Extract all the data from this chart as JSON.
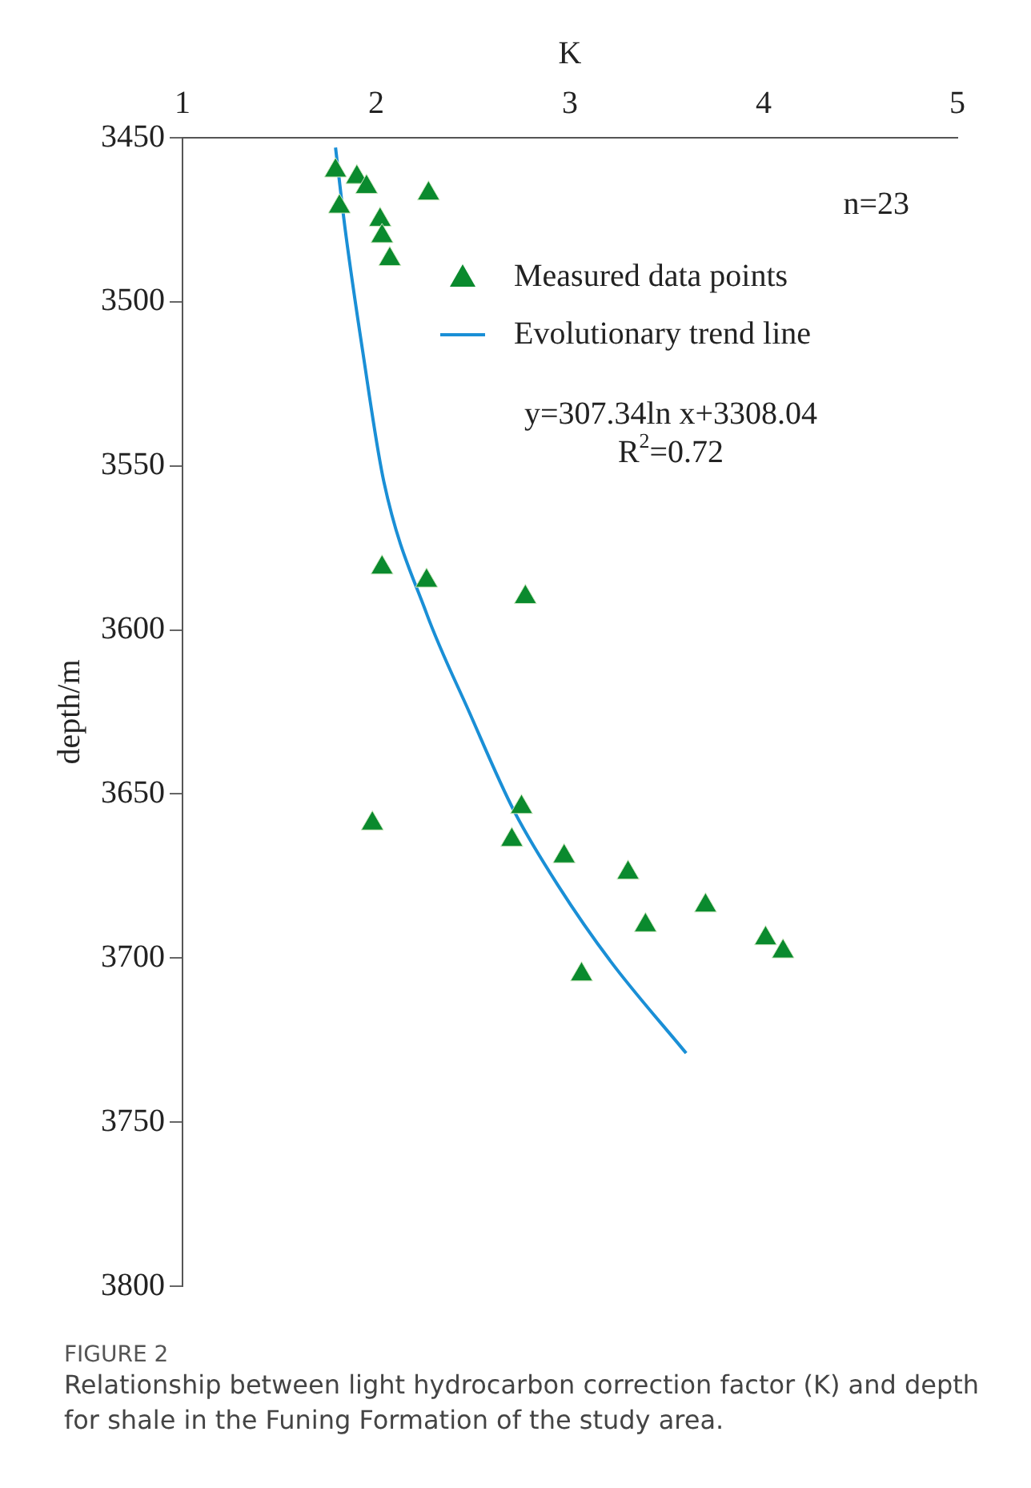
{
  "chart_data": {
    "type": "scatter",
    "xlabel": "K",
    "ylabel": "depth/m",
    "xlim": [
      1,
      5
    ],
    "xticks": [
      1,
      2,
      3,
      4,
      5
    ],
    "ylim": [
      3800,
      3450
    ],
    "yticks": [
      3450,
      3500,
      3550,
      3600,
      3650,
      3700,
      3750,
      3800
    ],
    "grid": false,
    "legend": "top right",
    "marker": "triangle",
    "series": [
      {
        "name": "Measured data points",
        "type": "scatter",
        "color": "#0a8a2e",
        "x": [
          1.79,
          1.9,
          1.95,
          1.81,
          2.27,
          2.02,
          2.03,
          2.07,
          2.03,
          2.26,
          2.77,
          2.75,
          1.98,
          2.7,
          2.97,
          3.3,
          3.7,
          3.39,
          4.01,
          4.1,
          3.06
        ],
        "values": [
          3460,
          3462,
          3465,
          3471,
          3467,
          3475,
          3480,
          3487,
          3581,
          3585,
          3590,
          3654,
          3659,
          3664,
          3669,
          3674,
          3684,
          3690,
          3694,
          3698,
          3705
        ]
      },
      {
        "name": "Evolutionary trend line",
        "type": "line",
        "color": "#1a8fd6",
        "marker": "none",
        "x": [
          1.79,
          1.84,
          1.93,
          2.04,
          2.26,
          2.48,
          2.71,
          2.94,
          3.21,
          3.6
        ],
        "values": [
          3453,
          3478,
          3515,
          3555,
          3595,
          3625,
          3655,
          3678,
          3701,
          3729
        ]
      }
    ],
    "annotations": [
      "n=23",
      "y=307.34ln x+3308.04",
      "R$^{2}$=0.72",
      "FIGURE 2",
      "Relationship between light hydrocarbon correction factor (K) and depth for shale in the Funing Formation of the study area."
    ]
  }
}
